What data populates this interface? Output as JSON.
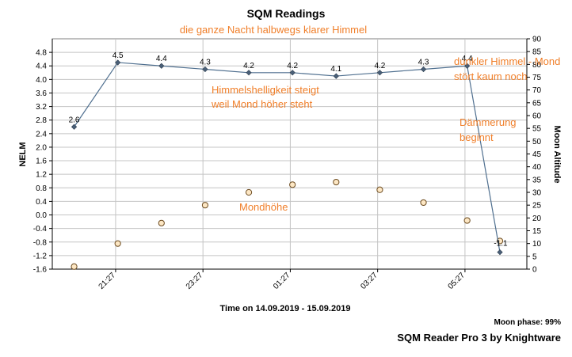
{
  "chart_data": {
    "type": "line",
    "title": "SQM Readings",
    "xlabel": "Time on 14.09.2019 - 15.09.2019",
    "ylabel": "NELM",
    "y2label": "Moon Altitude",
    "x_ticks": [
      "21:27",
      "23:27",
      "01:27",
      "03:27",
      "05:27"
    ],
    "y_ticks": [
      "4.8",
      "4.4",
      "4.0",
      "3.6",
      "3.2",
      "2.8",
      "2.4",
      "2.0",
      "1.6",
      "1.2",
      "0.8",
      "0.4",
      "0.0",
      "-0.4",
      "-0.8",
      "-1.2",
      "-1.6"
    ],
    "y2_ticks": [
      "90",
      "85",
      "80",
      "75",
      "70",
      "65",
      "60",
      "55",
      "50",
      "45",
      "40",
      "35",
      "30",
      "25",
      "20",
      "15",
      "10",
      "5",
      "0"
    ],
    "ylim": [
      -1.6,
      5.2
    ],
    "y2lim": [
      0,
      90
    ],
    "x": [
      "20:30",
      "21:30",
      "22:30",
      "23:30",
      "00:30",
      "01:30",
      "02:30",
      "03:30",
      "04:30",
      "05:30",
      "06:15"
    ],
    "series": [
      {
        "values": [
          2.6,
          4.5,
          4.4,
          4.3,
          4.2,
          4.2,
          4.1,
          4.2,
          4.3,
          4.4,
          -1.1
        ],
        "labels": [
          "2.6",
          "4.5",
          "4.4",
          "4.3",
          "4.2",
          "4.2",
          "4.1",
          "4.2",
          "4.3",
          "4.4",
          "-1.1"
        ],
        "color": "#4f6f8f"
      },
      {
        "values": [
          1,
          10,
          18,
          25,
          30,
          33,
          34,
          31,
          26,
          19,
          11
        ],
        "color": "#f2a13a"
      }
    ],
    "annotations": [
      "die ganze Nacht halbwegs klarer Himmel",
      "Himmelshelligkeit steigt",
      "weil Mond höher steht",
      "dunkler Himmel - Mond",
      "stört kaum noch",
      "Dämmerung",
      "beginnt",
      "Mondhöhe"
    ],
    "grid": true
  },
  "footer": {
    "moon_phase": "Moon phase: 99%",
    "credit": "SQM Reader Pro 3 by Knightware"
  },
  "colors": {
    "annotation": "#f07f2a",
    "nelm_line": "#4f6f8f",
    "moon_marker": "#f2a13a",
    "grid": "#c4c4c4"
  }
}
